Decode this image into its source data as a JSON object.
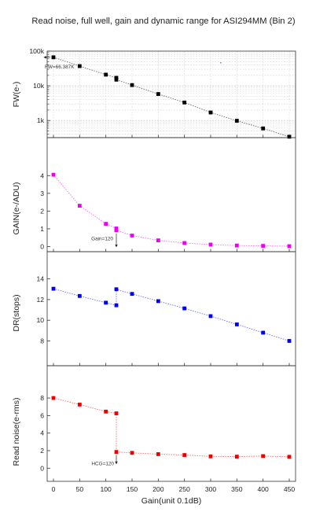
{
  "title": "Read noise, full well, gain and dynamic range for ASI294MM (Bin 2)",
  "chart_data": {
    "type": "scatter",
    "shared_x": {
      "label": "Gain(unit 0.1dB)",
      "range": [
        -12,
        462
      ],
      "ticks": [
        "0",
        "50",
        "100",
        "150",
        "200",
        "250",
        "300",
        "350",
        "400",
        "450"
      ]
    },
    "panels": [
      {
        "id": "fw",
        "ylabel": "FW(e-)",
        "scale": "log",
        "ylim": [
          320,
          100000
        ],
        "yticks": [
          "1k",
          "10k",
          "100k"
        ],
        "color": "#000000",
        "grid": true,
        "points": [
          {
            "x": 0,
            "y": 66387
          },
          {
            "x": 50,
            "y": 37000
          },
          {
            "x": 100,
            "y": 21000
          },
          {
            "x": 120,
            "y": 17000
          },
          {
            "x": 120,
            "y": 15000
          },
          {
            "x": 150,
            "y": 10500
          },
          {
            "x": 200,
            "y": 5800
          },
          {
            "x": 250,
            "y": 3300
          },
          {
            "x": 300,
            "y": 1700
          },
          {
            "x": 350,
            "y": 980
          },
          {
            "x": 400,
            "y": 590
          },
          {
            "x": 450,
            "y": 340
          }
        ],
        "annotation": {
          "text": "FW=66.387K",
          "x": 0,
          "y": 66387
        }
      },
      {
        "id": "gain",
        "ylabel": "GAIN(e-/ADU)",
        "scale": "linear",
        "ylim": [
          -0.2,
          4.5
        ],
        "yticks": [
          "0",
          "1",
          "2",
          "3",
          "4"
        ],
        "color": "#ee00ee",
        "grid": false,
        "points": [
          {
            "x": 0,
            "y": 4.05
          },
          {
            "x": 50,
            "y": 2.3
          },
          {
            "x": 100,
            "y": 1.28
          },
          {
            "x": 120,
            "y": 1.02
          },
          {
            "x": 120,
            "y": 0.92
          },
          {
            "x": 150,
            "y": 0.62
          },
          {
            "x": 200,
            "y": 0.35
          },
          {
            "x": 250,
            "y": 0.2
          },
          {
            "x": 300,
            "y": 0.11
          },
          {
            "x": 350,
            "y": 0.06
          },
          {
            "x": 400,
            "y": 0.04
          },
          {
            "x": 450,
            "y": 0.02
          }
        ],
        "annotation": {
          "text": "Gain=120",
          "x": 120,
          "y": 0.92
        }
      },
      {
        "id": "dr",
        "ylabel": "DR(stops)",
        "scale": "linear",
        "ylim": [
          7.2,
          14.2
        ],
        "yticks": [
          "8",
          "10",
          "12",
          "14"
        ],
        "color": "#0000ee",
        "grid": false,
        "points": [
          {
            "x": 0,
            "y": 13.05
          },
          {
            "x": 50,
            "y": 12.35
          },
          {
            "x": 100,
            "y": 11.7
          },
          {
            "x": 120,
            "y": 11.45
          },
          {
            "x": 120,
            "y": 13.0
          },
          {
            "x": 150,
            "y": 12.55
          },
          {
            "x": 200,
            "y": 11.85
          },
          {
            "x": 250,
            "y": 11.15
          },
          {
            "x": 300,
            "y": 10.4
          },
          {
            "x": 350,
            "y": 9.6
          },
          {
            "x": 400,
            "y": 8.8
          },
          {
            "x": 450,
            "y": 8.0
          }
        ]
      },
      {
        "id": "rn",
        "ylabel": "Read noise(e-rms)",
        "scale": "linear",
        "ylim": [
          -0.6,
          8.9
        ],
        "yticks": [
          "0",
          "2",
          "4",
          "6",
          "8"
        ],
        "color": "#ee0000",
        "grid": false,
        "points": [
          {
            "x": 0,
            "y": 8.0
          },
          {
            "x": 50,
            "y": 7.25
          },
          {
            "x": 100,
            "y": 6.45
          },
          {
            "x": 120,
            "y": 6.25
          },
          {
            "x": 120,
            "y": 1.85
          },
          {
            "x": 150,
            "y": 1.75
          },
          {
            "x": 200,
            "y": 1.6
          },
          {
            "x": 250,
            "y": 1.5
          },
          {
            "x": 300,
            "y": 1.35
          },
          {
            "x": 350,
            "y": 1.32
          },
          {
            "x": 400,
            "y": 1.38
          },
          {
            "x": 450,
            "y": 1.3
          }
        ],
        "annotation": {
          "text": "HCG=120",
          "x": 120,
          "y": 1.85
        }
      }
    ]
  }
}
